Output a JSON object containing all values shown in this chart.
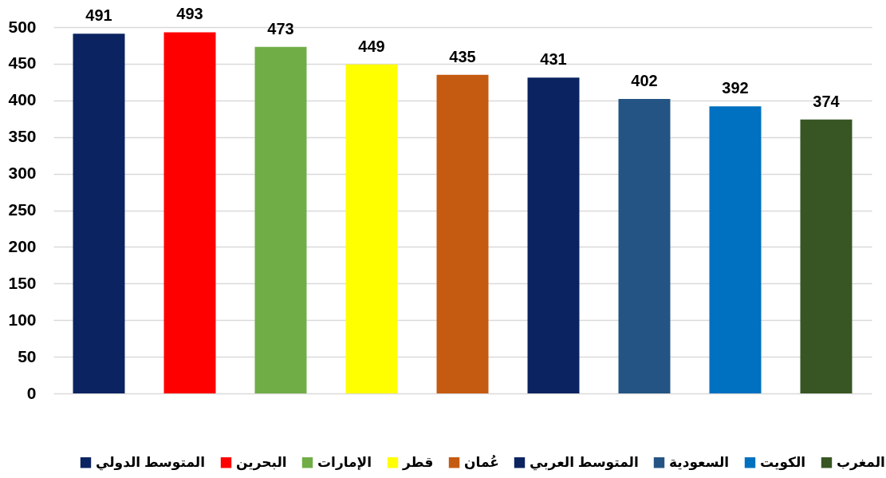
{
  "chart_data": {
    "type": "bar",
    "categories": [
      null,
      null,
      null,
      null,
      null,
      null,
      null,
      null,
      null
    ],
    "series": [
      {
        "name": "المتوسط الدولي",
        "color": "#0b2360",
        "values": [
          491,
          null,
          null,
          null,
          null,
          null,
          null,
          null,
          null
        ]
      },
      {
        "name": "البحرين",
        "color": "#ff0000",
        "values": [
          null,
          493,
          null,
          null,
          null,
          null,
          null,
          null,
          null
        ]
      },
      {
        "name": "الإمارات",
        "color": "#70ad47",
        "values": [
          null,
          null,
          473,
          null,
          null,
          null,
          null,
          null,
          null
        ]
      },
      {
        "name": "قطر",
        "color": "#ffff00",
        "values": [
          null,
          null,
          null,
          449,
          null,
          null,
          null,
          null,
          null
        ]
      },
      {
        "name": "عُمان",
        "color": "#c55a11",
        "values": [
          null,
          null,
          null,
          null,
          435,
          null,
          null,
          null,
          null
        ]
      },
      {
        "name": "المتوسط العربي",
        "color": "#0b2360",
        "values": [
          null,
          null,
          null,
          null,
          null,
          431,
          null,
          null,
          null
        ]
      },
      {
        "name": "السعودية",
        "color": "#245483",
        "values": [
          null,
          null,
          null,
          null,
          null,
          null,
          402,
          null,
          null
        ]
      },
      {
        "name": "الكويت",
        "color": "#0070c0",
        "values": [
          null,
          null,
          null,
          null,
          null,
          null,
          null,
          392,
          null
        ]
      },
      {
        "name": "المغرب",
        "color": "#375623",
        "values": [
          null,
          null,
          null,
          null,
          null,
          null,
          null,
          null,
          374
        ]
      }
    ],
    "ylim": [
      0,
      500
    ],
    "yticks": [
      0,
      50,
      100,
      150,
      200,
      250,
      300,
      350,
      400,
      450,
      500
    ],
    "grid": "y",
    "legend": "bottom",
    "tick_labels": "y",
    "data_labels": true
  }
}
